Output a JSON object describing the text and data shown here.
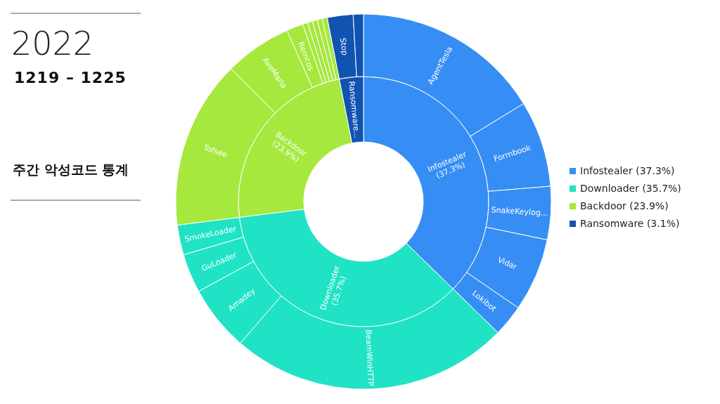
{
  "chart_data": [
    {
      "type": "donut",
      "title": "2022",
      "subtitle": "1219 – 1225",
      "annotations": [
        "주간 악성코드 통계"
      ],
      "categories": [
        "Infostealer (37.3%)",
        "Downloader (35.7%)",
        "Backdoor (23.9%)",
        "Ransomware (3.1%)"
      ],
      "values": [
        37.3,
        35.7,
        23.9,
        3.1
      ],
      "value_labels": [
        "Infostealer (37.3%)",
        "Downloader (35.7%)",
        "Backdoor (23.9%)",
        "Ransomware..."
      ],
      "colors": [
        "#368ef4",
        "#1fe3c4",
        "#a6e83e",
        "#1153b0"
      ],
      "legend": "right"
    },
    {
      "type": "donut",
      "categories": [
        "AgentTesla",
        "Formbook",
        "SnakeKeylog...",
        "Vidar",
        "Lokibot",
        "BeamWinHTTP",
        "Amadey",
        "GuLoader",
        "SmokeLoader",
        "Tofsee",
        "AveMaria",
        "Remcos",
        null,
        null,
        null,
        null,
        null,
        "Stop",
        null
      ],
      "values": [
        16.25,
        7.44,
        4.58,
        6.31,
        2.72,
        24.1,
        5.67,
        3.36,
        2.57,
        14.53,
        5.78,
        1.44,
        0.43,
        0.43,
        0.43,
        0.43,
        0.43,
        2.22,
        0.88
      ],
      "colors": [
        "#368ef4",
        "#368ef4",
        "#368ef4",
        "#368ef4",
        "#368ef4",
        "#1fe3c4",
        "#1fe3c4",
        "#1fe3c4",
        "#1fe3c4",
        "#a6e83e",
        "#a6e83e",
        "#a6e83e",
        "#a6e83e",
        "#a6e83e",
        "#a6e83e",
        "#a6e83e",
        "#a6e83e",
        "#1153b0",
        "#1153b0"
      ]
    }
  ]
}
